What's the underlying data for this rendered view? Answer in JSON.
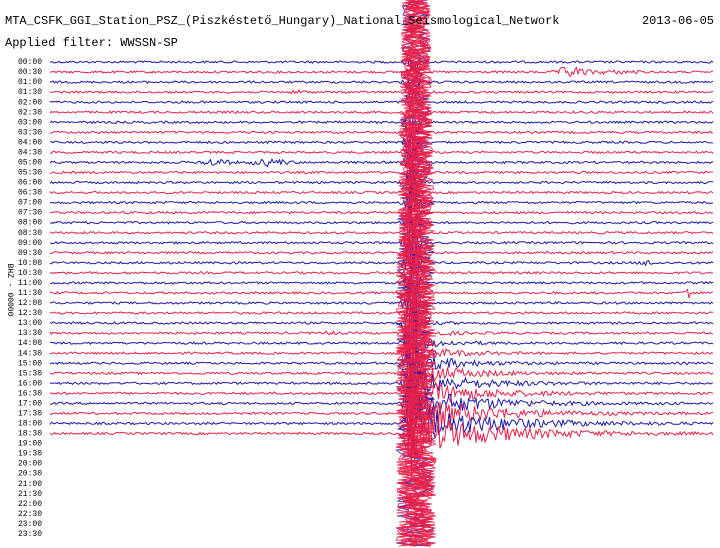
{
  "header": {
    "title": "MTA_CSFK_GGI_Station_PSZ_(Piszkéstető_Hungary)_National_Seismological_Network",
    "date": "2013-06-05",
    "filter": "Applied filter: WWSSN-SP"
  },
  "axis_label": "BHZ - 00000",
  "trace_colors": [
    "#1a1aa6",
    "#e8204a"
  ],
  "rows": [
    "00:00",
    "00:30",
    "01:00",
    "01:30",
    "02:00",
    "02:30",
    "03:00",
    "03:30",
    "04:00",
    "04:30",
    "05:00",
    "05:30",
    "06:00",
    "06:30",
    "07:00",
    "07:30",
    "08:00",
    "08:30",
    "09:00",
    "09:30",
    "10:00",
    "10:30",
    "11:00",
    "11:30",
    "12:00",
    "12:30",
    "13:00",
    "13:30",
    "14:00",
    "14:30",
    "15:00",
    "15:30",
    "16:00",
    "16:30",
    "17:00",
    "17:30",
    "18:00",
    "18:30",
    "19:00",
    "19:30",
    "20:00",
    "20:30",
    "21:00",
    "21:30",
    "22:00",
    "22:30",
    "23:00",
    "23:30"
  ]
}
